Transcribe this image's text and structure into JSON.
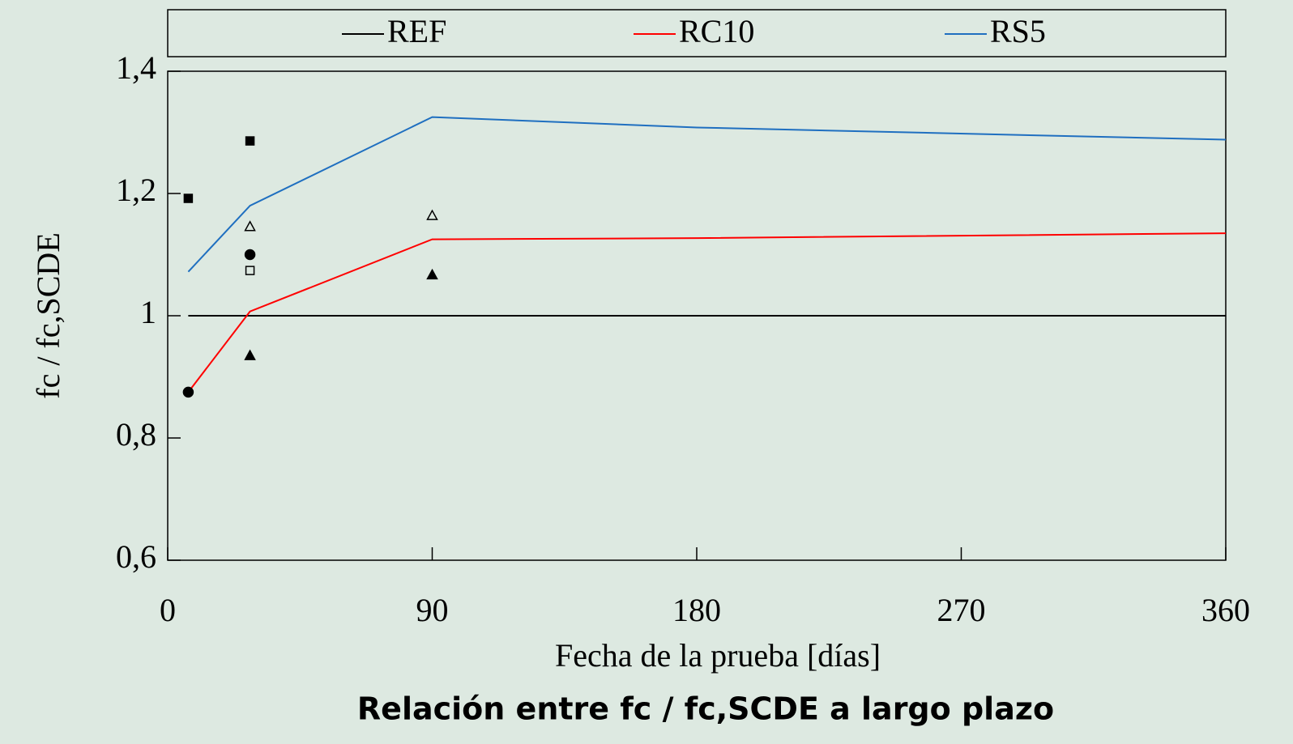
{
  "chart_data": {
    "type": "line",
    "title": "Relación entre fc / fc,SCDE a largo plazo",
    "xlabel": "Fecha de la prueba [días]",
    "ylabel": "fc / fc,SCDE",
    "x": [
      7,
      28,
      90,
      180,
      360
    ],
    "series": [
      {
        "name": "REF",
        "color": "#000000",
        "values": [
          1,
          1,
          1,
          1,
          1
        ]
      },
      {
        "name": "RC10",
        "color": "#ff0000",
        "values": [
          0.875,
          1.007,
          1.125,
          1.127,
          1.135
        ]
      },
      {
        "name": "RS5",
        "color": "#1f6fc0",
        "values": [
          1.072,
          1.18,
          1.325,
          1.308,
          1.288
        ]
      }
    ],
    "markers": [
      {
        "marker": "filled-square",
        "x": [
          7,
          28
        ],
        "values": [
          1.192,
          1.286
        ]
      },
      {
        "marker": "open-triangle",
        "x": [
          28,
          90
        ],
        "values": [
          1.146,
          1.164
        ]
      },
      {
        "marker": "filled-circle",
        "x": [
          7,
          28
        ],
        "values": [
          0.875,
          1.1
        ]
      },
      {
        "marker": "open-square",
        "x": [
          28
        ],
        "values": [
          1.074
        ]
      },
      {
        "marker": "filled-triangle",
        "x": [
          28,
          90
        ],
        "values": [
          0.935,
          1.067
        ]
      }
    ],
    "xlim": [
      0,
      360
    ],
    "xticks": [
      0,
      90,
      180,
      270,
      360
    ],
    "ylim": [
      0.6,
      1.4
    ],
    "yticks": [
      {
        "value": 0.6,
        "label": "0,6"
      },
      {
        "value": 0.8,
        "label": "0,8"
      },
      1,
      {
        "value": 1.2,
        "label": "1,2"
      },
      {
        "value": 1.4,
        "label": "1,4"
      }
    ],
    "legend": "top"
  }
}
